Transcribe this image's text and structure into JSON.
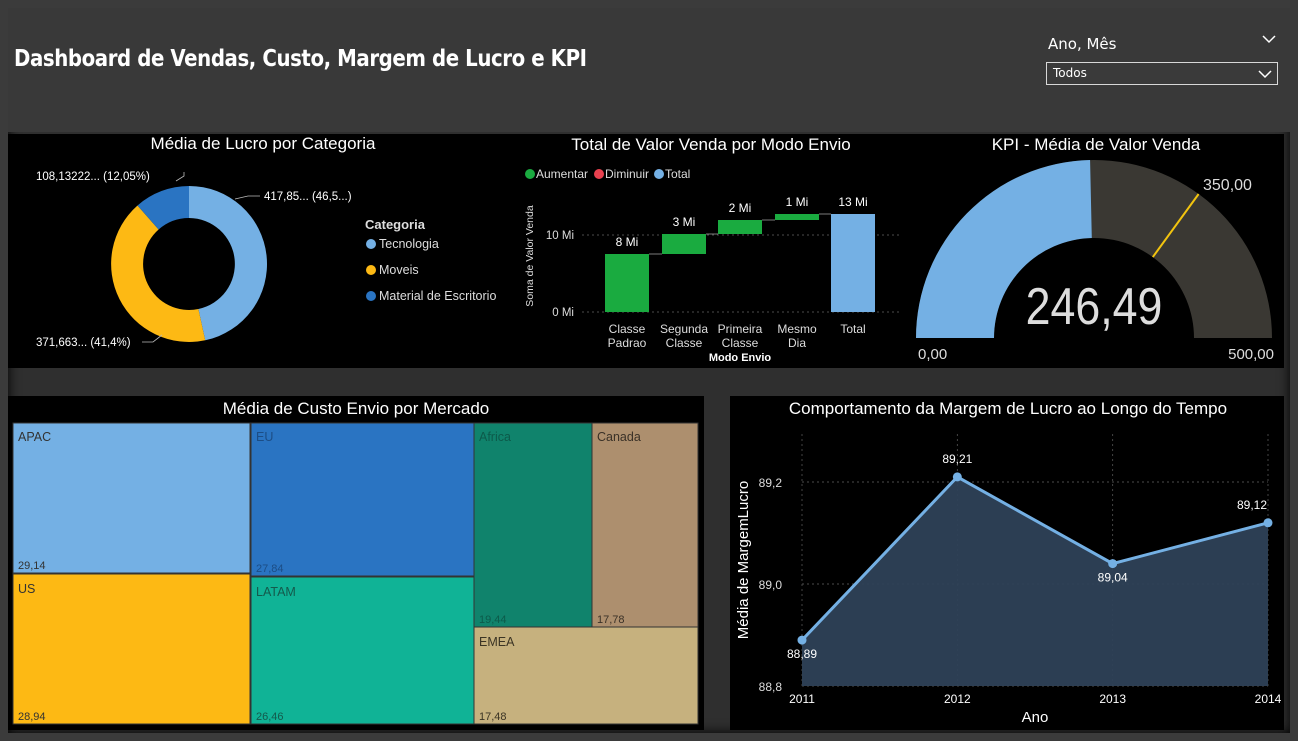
{
  "header": {
    "title": "Dashboard de Vendas, Custo, Margem de Lucro e KPI",
    "slicer": {
      "label": "Ano, Mês",
      "value": "Todos"
    }
  },
  "donut": {
    "title": "Média de Lucro por Categoria",
    "legend_title": "Categoria",
    "legend": [
      {
        "name": "Tecnologia",
        "color": "#74b0e4"
      },
      {
        "name": "Moveis",
        "color": "#fdb914"
      },
      {
        "name": "Material de Escritorio",
        "color": "#2a74c2"
      }
    ],
    "labels": {
      "tecnologia": "417,85... (46,5...)",
      "moveis": "371,663... (41,4%)",
      "material": "108,13222... (12,05%)"
    }
  },
  "waterfall": {
    "title": "Total de Valor Venda por Modo Envio",
    "legend": [
      {
        "name": "Aumentar",
        "color": "#1aab40"
      },
      {
        "name": "Diminuir",
        "color": "#e8414f"
      },
      {
        "name": "Total",
        "color": "#74b0e4"
      }
    ],
    "ylabel": "Soma de Valor Venda",
    "xlabel": "Modo Envio",
    "ticks": [
      "10 Mi",
      "0 Mi"
    ],
    "bars": [
      {
        "label_l1": "Classe",
        "label_l2": "Padrao",
        "value_label": "8 Mi"
      },
      {
        "label_l1": "Segunda",
        "label_l2": "Classe",
        "value_label": "3 Mi"
      },
      {
        "label_l1": "Primeira",
        "label_l2": "Classe",
        "value_label": "2 Mi"
      },
      {
        "label_l1": "Mesmo",
        "label_l2": "Dia",
        "value_label": "1 Mi"
      },
      {
        "label_l1": "Total",
        "label_l2": "",
        "value_label": "13 Mi"
      }
    ]
  },
  "kpi": {
    "title": "KPI - Média de Valor Venda",
    "value": 246.49,
    "value_label": "246,49",
    "min_label": "0,00",
    "max_label": "500,00",
    "target_label": "350,00",
    "min": 0,
    "max": 500,
    "target": 350,
    "fill_color": "#74b0e4",
    "track_color": "#3a3833",
    "target_color": "#f2c40f"
  },
  "treemap": {
    "title": "Média de Custo Envio por Mercado",
    "items": [
      {
        "name": "APAC",
        "value_label": "29,14",
        "color": "#74b0e4"
      },
      {
        "name": "EU",
        "value_label": "27,84",
        "color": "#2a74c2"
      },
      {
        "name": "Africa",
        "value_label": "19,44",
        "color": "#10836c"
      },
      {
        "name": "Canada",
        "value_label": "17,78",
        "color": "#ad8f6e"
      },
      {
        "name": "US",
        "value_label": "28,94",
        "color": "#fdb914"
      },
      {
        "name": "LATAM",
        "value_label": "26,46",
        "color": "#10b396"
      },
      {
        "name": "EMEA",
        "value_label": "17,48",
        "color": "#c6b17e"
      }
    ]
  },
  "chart_data": {
    "type": "area",
    "title": "Comportamento da Margem de Lucro ao Longo do Tempo",
    "xlabel": "Ano",
    "ylabel": "Média de MargemLucro",
    "categories": [
      "2011",
      "2012",
      "2013",
      "2014"
    ],
    "values": [
      88.89,
      89.21,
      89.04,
      89.12
    ],
    "value_labels": [
      "88,89",
      "89,21",
      "89,04",
      "89,12"
    ],
    "yticks": [
      "89,2",
      "89,0",
      "88,8"
    ],
    "ylim": [
      88.8,
      89.2
    ],
    "grid": true,
    "line_color": "#74b0e4",
    "fill_color": "#2e4157"
  }
}
